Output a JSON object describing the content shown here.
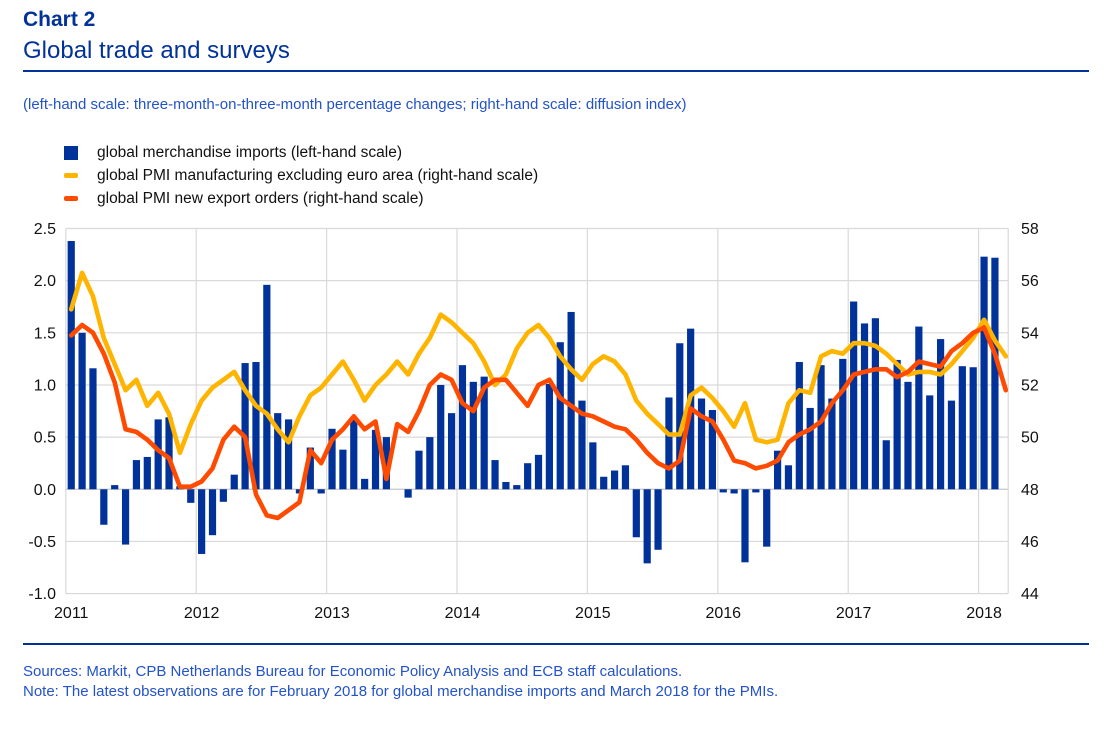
{
  "header": {
    "chart_label": "Chart 2",
    "title": "Global trade and surveys"
  },
  "scale_note": "(left-hand scale: three-month-on-three-month percentage changes; right-hand scale: diffusion index)",
  "colors": {
    "ecb_blue": "#003299",
    "note_blue": "#2353c8",
    "bar_blue": "#003299",
    "pmi_yellow": "#FFB400",
    "pmi_orange": "#FF4B00",
    "grid_gray": "#d9d9d9"
  },
  "legend": [
    {
      "label": "global merchandise imports (left-hand scale)",
      "color": "#003299",
      "shape": "square"
    },
    {
      "label": "global PMI manufacturing excluding euro area (right-hand scale)",
      "color": "#FFB400",
      "shape": "line"
    },
    {
      "label": "global PMI new export orders (right-hand scale)",
      "color": "#FF4B00",
      "shape": "line"
    }
  ],
  "chart_data": {
    "type": "bar",
    "subtype": "bar+line combo, monthly data Jan 2011 - Mar 2018",
    "x_start": "2011-01",
    "years": [
      "2011",
      "2012",
      "2013",
      "2014",
      "2015",
      "2016",
      "2017",
      "2018"
    ],
    "left_axis": {
      "label": "three-month-on-three-month percentage changes",
      "tick_labels": [
        "2.5",
        "2.0",
        "1.5",
        "1.0",
        "0.5",
        "0.0",
        "-0.5",
        "-1.0"
      ],
      "tick_values": [
        2.5,
        2.0,
        1.5,
        1.0,
        0.5,
        0.0,
        -0.5,
        -1.0
      ],
      "range": [
        -1.0,
        2.5
      ],
      "grid": true
    },
    "right_axis": {
      "label": "diffusion index",
      "tick_labels": [
        "58",
        "56",
        "54",
        "52",
        "50",
        "48",
        "46",
        "44"
      ],
      "tick_values": [
        58,
        56,
        54,
        52,
        50,
        48,
        46,
        44
      ],
      "range": [
        44,
        58
      ]
    },
    "series": [
      {
        "name": "global merchandise imports",
        "type": "bar",
        "axis": "left",
        "color": "#003299",
        "last_observation": "February 2018",
        "values": [
          2.38,
          1.5,
          1.16,
          -0.34,
          0.04,
          -0.53,
          0.28,
          0.31,
          0.67,
          0.69,
          0.03,
          -0.13,
          -0.62,
          -0.44,
          -0.12,
          0.14,
          1.21,
          1.22,
          1.96,
          0.73,
          0.67,
          -0.04,
          0.4,
          -0.04,
          0.58,
          0.38,
          0.68,
          0.1,
          0.57,
          0.5,
          0.0,
          -0.08,
          0.37,
          0.5,
          1.0,
          0.73,
          1.19,
          1.03,
          1.08,
          0.28,
          0.07,
          0.04,
          0.25,
          0.33,
          1.01,
          1.41,
          1.7,
          0.85,
          0.45,
          0.12,
          0.18,
          0.23,
          -0.46,
          -0.71,
          -0.58,
          0.88,
          1.4,
          1.54,
          0.87,
          0.76,
          -0.03,
          -0.04,
          -0.7,
          -0.03,
          -0.55,
          0.37,
          0.23,
          1.22,
          0.78,
          1.19,
          0.87,
          1.25,
          1.8,
          1.59,
          1.64,
          0.47,
          1.24,
          1.03,
          1.56,
          0.9,
          1.44,
          0.85,
          1.18,
          1.17,
          2.23,
          2.22
        ]
      },
      {
        "name": "global PMI manufacturing excluding euro area",
        "type": "line",
        "axis": "right",
        "color": "#FFB400",
        "last_observation": "March 2018",
        "values": [
          54.9,
          56.3,
          55.4,
          53.8,
          52.8,
          51.8,
          52.2,
          51.2,
          51.7,
          50.9,
          49.4,
          50.5,
          51.4,
          51.9,
          52.2,
          52.5,
          51.8,
          51.2,
          50.9,
          50.3,
          49.8,
          50.8,
          51.6,
          51.9,
          52.4,
          52.9,
          52.2,
          51.4,
          52.0,
          52.4,
          52.9,
          52.4,
          53.2,
          53.8,
          54.7,
          54.4,
          54.0,
          53.6,
          52.9,
          52.0,
          52.4,
          53.4,
          54.0,
          54.3,
          53.8,
          53.1,
          52.6,
          52.2,
          52.8,
          53.1,
          52.9,
          52.4,
          51.4,
          50.9,
          50.5,
          50.1,
          50.1,
          51.6,
          51.9,
          51.5,
          51.0,
          50.4,
          51.3,
          49.9,
          49.8,
          49.9,
          51.3,
          51.8,
          51.7,
          53.1,
          53.3,
          53.2,
          53.6,
          53.6,
          53.5,
          53.2,
          52.8,
          52.4,
          52.5,
          52.5,
          52.4,
          52.8,
          53.3,
          53.8,
          54.5,
          53.7,
          53.1
        ]
      },
      {
        "name": "global PMI new export orders",
        "type": "line",
        "axis": "right",
        "color": "#FF4B00",
        "last_observation": "March 2018",
        "values": [
          53.9,
          54.3,
          54.0,
          53.2,
          52.1,
          50.3,
          50.2,
          49.9,
          49.5,
          49.2,
          48.1,
          48.1,
          48.3,
          48.8,
          49.9,
          50.4,
          50.0,
          47.8,
          47.0,
          46.9,
          47.2,
          47.5,
          49.5,
          49.0,
          49.9,
          50.3,
          50.8,
          50.3,
          50.6,
          48.4,
          50.5,
          50.2,
          51.0,
          52.0,
          52.4,
          52.2,
          51.3,
          51.0,
          51.9,
          52.2,
          52.2,
          51.7,
          51.2,
          52.0,
          52.2,
          51.5,
          51.2,
          50.9,
          50.8,
          50.6,
          50.4,
          50.3,
          49.9,
          49.4,
          49.0,
          48.8,
          49.1,
          51.1,
          50.8,
          50.6,
          49.9,
          49.1,
          49.0,
          48.8,
          48.9,
          49.1,
          49.8,
          50.1,
          50.3,
          50.6,
          51.3,
          51.8,
          52.4,
          52.5,
          52.6,
          52.6,
          52.3,
          52.5,
          52.9,
          52.8,
          52.7,
          53.3,
          53.6,
          54.0,
          54.2,
          53.2,
          51.8
        ]
      }
    ],
    "title": "Global trade and surveys",
    "xlabel": "",
    "ylabel": ""
  },
  "footer": {
    "sources": "Sources: Markit, CPB Netherlands Bureau for Economic Policy Analysis and ECB staff calculations.",
    "note": "Note: The latest observations are for February 2018 for global merchandise imports and March 2018 for the PMIs."
  }
}
